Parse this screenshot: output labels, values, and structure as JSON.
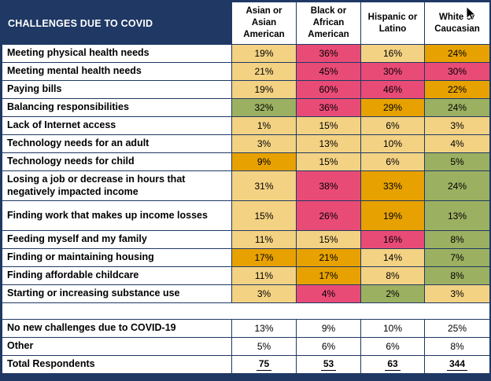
{
  "chart_data": {
    "type": "table",
    "title": "CHALLENGES DUE TO COVID",
    "columns": [
      "Asian or Asian American",
      "Black  or African American",
      "Hispanic or Latino",
      "White or Caucasian"
    ],
    "rows": [
      {
        "label": "Meeting physical health needs",
        "values": [
          "19%",
          "36%",
          "16%",
          "24%"
        ],
        "colors": [
          "tan",
          "pink",
          "tan",
          "orange"
        ]
      },
      {
        "label": "Meeting mental health needs",
        "values": [
          "21%",
          "45%",
          "30%",
          "30%"
        ],
        "colors": [
          "tan",
          "pink",
          "pink",
          "pink"
        ]
      },
      {
        "label": "Paying bills",
        "values": [
          "19%",
          "60%",
          "46%",
          "22%"
        ],
        "colors": [
          "tan",
          "pink",
          "pink",
          "orange"
        ]
      },
      {
        "label": "Balancing responsibilities",
        "values": [
          "32%",
          "36%",
          "29%",
          "24%"
        ],
        "colors": [
          "green",
          "pink",
          "orange",
          "green"
        ]
      },
      {
        "label": "Lack of Internet access",
        "values": [
          "1%",
          "15%",
          "6%",
          "3%"
        ],
        "colors": [
          "tan",
          "tan",
          "tan",
          "tan"
        ]
      },
      {
        "label": "Technology needs for an adult",
        "values": [
          "3%",
          "13%",
          "10%",
          "4%"
        ],
        "colors": [
          "tan",
          "tan",
          "tan",
          "tan"
        ]
      },
      {
        "label": "Technology needs for child",
        "values": [
          "9%",
          "15%",
          "6%",
          "5%"
        ],
        "colors": [
          "orange",
          "tan",
          "tan",
          "green"
        ]
      },
      {
        "label": "Losing a job or decrease in hours that negatively impacted income",
        "values": [
          "31%",
          "38%",
          "33%",
          "24%"
        ],
        "colors": [
          "tan",
          "pink",
          "orange",
          "green"
        ],
        "tall": true
      },
      {
        "label": "Finding work that makes up income losses",
        "values": [
          "15%",
          "26%",
          "19%",
          "13%"
        ],
        "colors": [
          "tan",
          "pink",
          "orange",
          "green"
        ],
        "tall": true
      },
      {
        "label": "Feeding myself and my family",
        "values": [
          "11%",
          "15%",
          "16%",
          "8%"
        ],
        "colors": [
          "tan",
          "tan",
          "pink",
          "green"
        ]
      },
      {
        "label": "Finding or maintaining housing",
        "values": [
          "17%",
          "21%",
          "14%",
          "7%"
        ],
        "colors": [
          "orange",
          "orange",
          "tan",
          "green"
        ]
      },
      {
        "label": "Finding affordable childcare",
        "values": [
          "11%",
          "17%",
          "8%",
          "8%"
        ],
        "colors": [
          "tan",
          "orange",
          "tan",
          "green"
        ]
      },
      {
        "label": "Starting or increasing substance use",
        "values": [
          "3%",
          "4%",
          "2%",
          "3%"
        ],
        "colors": [
          "tan",
          "pink",
          "green",
          "tan"
        ]
      }
    ],
    "summary_rows": [
      {
        "label": "No new challenges due to COVID-19",
        "values": [
          "13%",
          "9%",
          "10%",
          "25%"
        ]
      },
      {
        "label": "Other",
        "values": [
          "5%",
          "6%",
          "6%",
          "8%"
        ]
      },
      {
        "label": "Total Respondents",
        "values": [
          "75",
          "53",
          "63",
          "344"
        ],
        "emphasis": true
      }
    ],
    "palette": {
      "tan": "#F3D283",
      "pink": "#E94B77",
      "orange": "#E7A201",
      "green": "#9CB061",
      "navy": "#1F3864"
    }
  }
}
